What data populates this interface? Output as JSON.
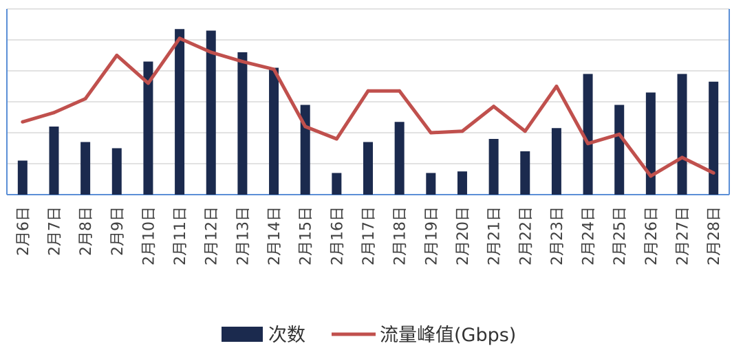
{
  "chart_data": {
    "type": "bar",
    "categories": [
      "2月6日",
      "2月7日",
      "2月8日",
      "2月9日",
      "2月10日",
      "2月11日",
      "2月12日",
      "2月13日",
      "2月14日",
      "2月15日",
      "2月16日",
      "2月17日",
      "2月18日",
      "2月19日",
      "2月20日",
      "2月21日",
      "2月22日",
      "2月23日",
      "2月24日",
      "2月25日",
      "2月26日",
      "2月27日",
      "2月28日"
    ],
    "series": [
      {
        "name": "次数",
        "type": "bar",
        "color": "#1b2a4e",
        "values": [
          1.1,
          2.2,
          1.7,
          1.5,
          4.3,
          5.35,
          5.3,
          4.6,
          4.1,
          2.9,
          0.7,
          1.7,
          2.35,
          0.7,
          0.75,
          1.8,
          1.4,
          2.15,
          3.9,
          2.9,
          3.3,
          3.9,
          3.65
        ]
      },
      {
        "name": "流量峰值(Gbps)",
        "type": "line",
        "color": "#c0504d",
        "values": [
          2.35,
          2.65,
          3.1,
          4.5,
          3.6,
          5.05,
          4.6,
          4.3,
          4.05,
          2.2,
          1.8,
          3.35,
          3.35,
          2.0,
          2.05,
          2.85,
          2.05,
          3.5,
          1.65,
          1.95,
          0.6,
          1.2,
          0.7
        ]
      }
    ],
    "ylim": [
      0,
      6
    ],
    "grid": true,
    "legend_position": "bottom"
  },
  "legend": {
    "bar_label": "次数",
    "line_label": "流量峰值(Gbps)"
  }
}
